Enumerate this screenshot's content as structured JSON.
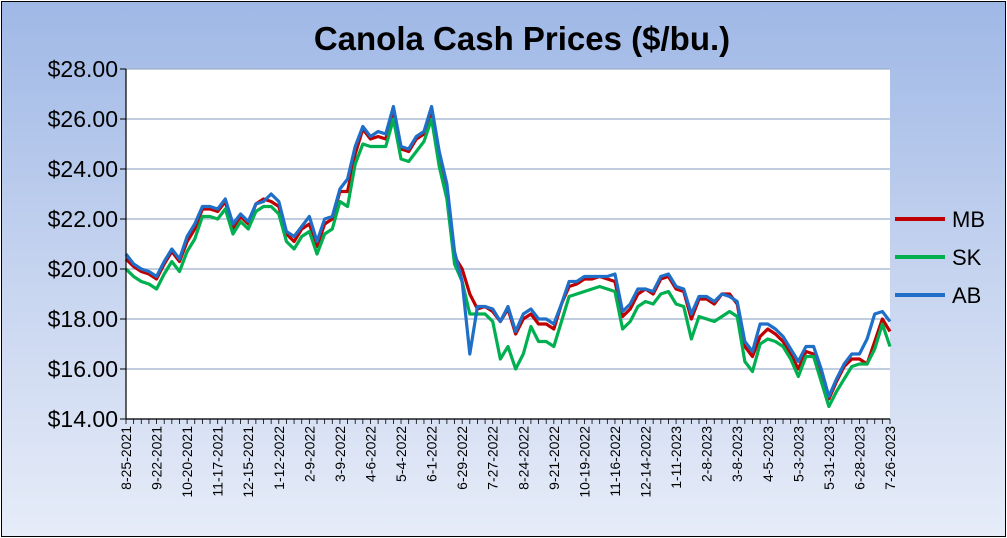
{
  "chart_data": {
    "type": "line",
    "title": "Canola Cash Prices ($/bu.)",
    "xlabel": "",
    "ylabel": "",
    "ylim": [
      14,
      28
    ],
    "y_ticks": [
      14,
      16,
      18,
      20,
      22,
      24,
      26,
      28
    ],
    "y_tick_labels": [
      "$14.00",
      "$16.00",
      "$18.00",
      "$20.00",
      "$22.00",
      "$24.00",
      "$26.00",
      "$28.00"
    ],
    "grid": true,
    "legend_position": "right",
    "x_tick_labels": [
      "8-25-2021",
      "9-22-2021",
      "10-20-2021",
      "11-17-2021",
      "12-15-2021",
      "1-12-2022",
      "2-9-2022",
      "3-9-2022",
      "4-6-2022",
      "5-4-2022",
      "6-1-2022",
      "6-29-2022",
      "7-27-2022",
      "8-24-2022",
      "9-21-2022",
      "10-19-2022",
      "11-16-2022",
      "12-14-2022",
      "1-11-2023",
      "2-8-2023",
      "3-8-2023",
      "4-5-2023",
      "5-3-2023",
      "5-31-2023",
      "6-28-2023",
      "7-26-2023"
    ],
    "n_points": 101,
    "series": [
      {
        "name": "MB",
        "color": "#c00000",
        "values": [
          20.4,
          20.1,
          19.9,
          19.8,
          19.6,
          20.2,
          20.7,
          20.3,
          21.1,
          21.6,
          22.4,
          22.4,
          22.3,
          22.7,
          21.6,
          22.1,
          21.8,
          22.6,
          22.8,
          22.7,
          22.5,
          21.4,
          21.1,
          21.6,
          21.8,
          20.9,
          21.8,
          22.0,
          23.1,
          23.1,
          24.6,
          25.6,
          25.2,
          25.3,
          25.2,
          26.3,
          24.8,
          24.7,
          25.2,
          25.4,
          26.3,
          24.4,
          23.1,
          20.5,
          20.0,
          19.0,
          18.4,
          18.5,
          18.3,
          17.9,
          18.4,
          17.4,
          18.0,
          18.2,
          17.8,
          17.8,
          17.6,
          18.6,
          19.3,
          19.4,
          19.6,
          19.6,
          19.7,
          19.6,
          19.5,
          18.1,
          18.4,
          19.0,
          19.2,
          19.0,
          19.6,
          19.7,
          19.2,
          19.1,
          18.0,
          18.8,
          18.8,
          18.6,
          19.0,
          19.0,
          18.6,
          16.9,
          16.5,
          17.3,
          17.6,
          17.4,
          17.1,
          16.6,
          16.0,
          16.7,
          16.6,
          15.8,
          14.8,
          15.5,
          16.1,
          16.4,
          16.4,
          16.2,
          17.1,
          18.0,
          17.5
        ]
      },
      {
        "name": "SK",
        "color": "#00b050",
        "values": [
          20.0,
          19.7,
          19.5,
          19.4,
          19.2,
          19.8,
          20.3,
          19.9,
          20.7,
          21.2,
          22.1,
          22.1,
          22.0,
          22.4,
          21.4,
          21.9,
          21.6,
          22.3,
          22.5,
          22.5,
          22.2,
          21.1,
          20.8,
          21.3,
          21.5,
          20.6,
          21.4,
          21.6,
          22.7,
          22.5,
          24.2,
          25.0,
          24.9,
          24.9,
          24.9,
          26.0,
          24.4,
          24.3,
          24.7,
          25.1,
          26.0,
          24.1,
          22.8,
          20.2,
          19.5,
          18.2,
          18.2,
          18.2,
          17.9,
          16.4,
          16.9,
          16.0,
          16.6,
          17.7,
          17.1,
          17.1,
          16.9,
          17.9,
          18.9,
          19.0,
          19.1,
          19.2,
          19.3,
          19.2,
          19.1,
          17.6,
          17.9,
          18.5,
          18.7,
          18.6,
          19.0,
          19.1,
          18.6,
          18.5,
          17.2,
          18.1,
          18.0,
          17.9,
          18.1,
          18.3,
          18.1,
          16.3,
          15.9,
          17.0,
          17.2,
          17.1,
          16.9,
          16.4,
          15.7,
          16.5,
          16.5,
          15.5,
          14.5,
          15.1,
          15.6,
          16.1,
          16.2,
          16.2,
          16.8,
          17.8,
          16.9
        ]
      },
      {
        "name": "AB",
        "color": "#1f6fc8",
        "values": [
          20.6,
          20.2,
          20.0,
          19.9,
          19.7,
          20.3,
          20.8,
          20.4,
          21.3,
          21.8,
          22.5,
          22.5,
          22.4,
          22.8,
          21.8,
          22.2,
          21.9,
          22.6,
          22.7,
          23.0,
          22.7,
          21.5,
          21.3,
          21.7,
          22.1,
          21.1,
          22.0,
          22.1,
          23.2,
          23.6,
          24.9,
          25.7,
          25.3,
          25.5,
          25.4,
          26.5,
          24.9,
          24.8,
          25.3,
          25.5,
          26.5,
          24.7,
          23.4,
          20.7,
          19.5,
          16.6,
          18.5,
          18.5,
          18.4,
          17.9,
          18.5,
          17.5,
          18.2,
          18.4,
          18.0,
          18.0,
          17.8,
          18.6,
          19.5,
          19.5,
          19.7,
          19.7,
          19.7,
          19.7,
          19.8,
          18.3,
          18.6,
          19.2,
          19.2,
          19.1,
          19.7,
          19.8,
          19.3,
          19.2,
          18.2,
          18.9,
          18.9,
          18.7,
          19.0,
          18.9,
          18.7,
          17.1,
          16.7,
          17.8,
          17.8,
          17.6,
          17.3,
          16.8,
          16.3,
          16.9,
          16.9,
          16.0,
          14.9,
          15.6,
          16.2,
          16.6,
          16.6,
          17.2,
          18.2,
          18.3,
          17.9
        ]
      }
    ]
  }
}
